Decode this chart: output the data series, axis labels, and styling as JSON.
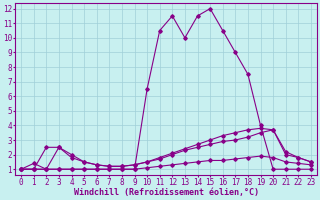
{
  "bg_color": "#c8f0f0",
  "grid_color": "#a0d0d8",
  "line_color": "#880088",
  "xlabel": "Windchill (Refroidissement éolien,°C)",
  "xlabel_fontsize": 6.0,
  "tick_fontsize": 5.5,
  "xlim": [
    -0.5,
    23.5
  ],
  "ylim": [
    0.6,
    12.4
  ],
  "yticks": [
    1,
    2,
    3,
    4,
    5,
    6,
    7,
    8,
    9,
    10,
    11,
    12
  ],
  "xticks": [
    0,
    1,
    2,
    3,
    4,
    5,
    6,
    7,
    8,
    9,
    10,
    11,
    12,
    13,
    14,
    15,
    16,
    17,
    18,
    19,
    20,
    21,
    22,
    23
  ],
  "line1_x": [
    0,
    1,
    2,
    3,
    4,
    5,
    6,
    7,
    8,
    9,
    10,
    11,
    12,
    13,
    14,
    15,
    16,
    17,
    18,
    19,
    20,
    21,
    22,
    23
  ],
  "line1_y": [
    1.0,
    1.4,
    1.0,
    1.0,
    1.0,
    1.0,
    1.0,
    1.0,
    1.0,
    1.0,
    1.1,
    1.2,
    1.3,
    1.4,
    1.5,
    1.6,
    1.6,
    1.7,
    1.8,
    1.9,
    1.8,
    1.5,
    1.4,
    1.3
  ],
  "line2_x": [
    0,
    1,
    2,
    3,
    4,
    5,
    6,
    7,
    8,
    9,
    10,
    11,
    12,
    13,
    14,
    15,
    16,
    17,
    18,
    19,
    20,
    21,
    22,
    23
  ],
  "line2_y": [
    1.0,
    1.0,
    1.0,
    2.5,
    1.8,
    1.5,
    1.3,
    1.2,
    1.2,
    1.3,
    1.5,
    1.7,
    2.0,
    2.3,
    2.5,
    2.7,
    2.9,
    3.0,
    3.2,
    3.5,
    3.7,
    2.2,
    1.8,
    1.5
  ],
  "line3_x": [
    0,
    1,
    2,
    3,
    4,
    5,
    6,
    7,
    8,
    9,
    10,
    11,
    12,
    13,
    14,
    15,
    16,
    17,
    18,
    19,
    20,
    21,
    22,
    23
  ],
  "line3_y": [
    1.0,
    1.0,
    1.0,
    1.0,
    1.0,
    1.0,
    1.0,
    1.0,
    1.0,
    1.0,
    6.5,
    10.5,
    11.5,
    10.0,
    11.5,
    12.0,
    10.5,
    9.0,
    7.5,
    4.0,
    1.0,
    1.0,
    1.0,
    1.0
  ],
  "line4_x": [
    0,
    1,
    2,
    3,
    4,
    5,
    6,
    7,
    8,
    9,
    10,
    11,
    12,
    13,
    14,
    15,
    16,
    17,
    18,
    19,
    20,
    21,
    22,
    23
  ],
  "line4_y": [
    1.0,
    1.0,
    2.5,
    2.5,
    2.0,
    1.5,
    1.3,
    1.2,
    1.2,
    1.3,
    1.5,
    1.8,
    2.1,
    2.4,
    2.7,
    3.0,
    3.3,
    3.5,
    3.7,
    3.8,
    3.7,
    2.0,
    1.8,
    1.5
  ]
}
